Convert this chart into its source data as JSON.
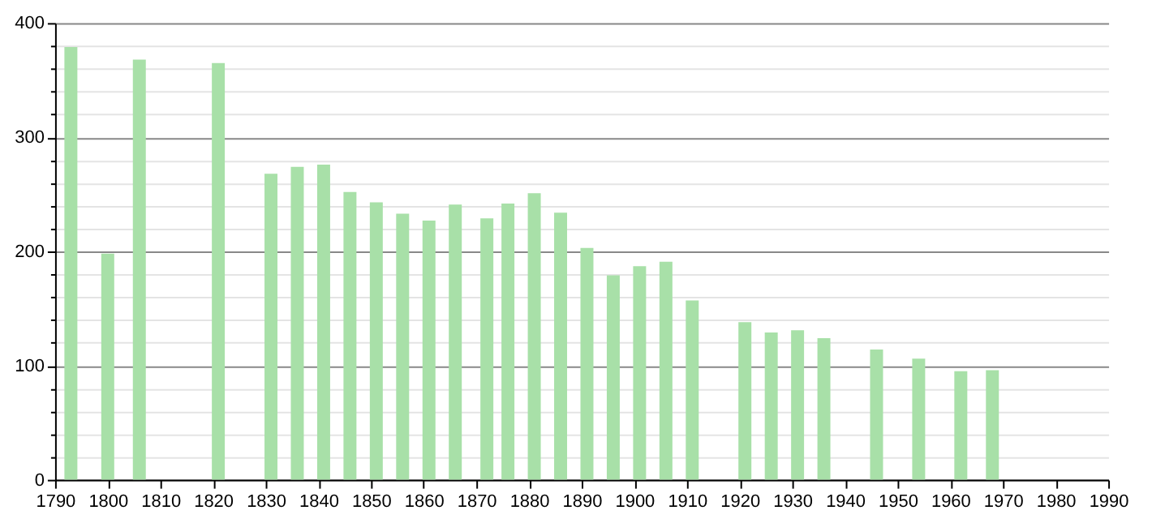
{
  "chart_data": {
    "type": "bar",
    "color": "#a8e0a8",
    "x": [
      1793,
      1800,
      1806,
      1821,
      1831,
      1836,
      1841,
      1846,
      1851,
      1856,
      1861,
      1866,
      1872,
      1876,
      1881,
      1886,
      1891,
      1896,
      1901,
      1906,
      1911,
      1921,
      1926,
      1931,
      1936,
      1946,
      1954,
      1962,
      1968
    ],
    "values": [
      379,
      198,
      368,
      365,
      268,
      274,
      276,
      252,
      243,
      233,
      227,
      241,
      229,
      242,
      251,
      234,
      203,
      179,
      187,
      191,
      157,
      138,
      129,
      131,
      124,
      114,
      106,
      95,
      96
    ],
    "xlim": [
      1790,
      1990
    ],
    "xticks": [
      1790,
      1800,
      1810,
      1820,
      1830,
      1840,
      1850,
      1860,
      1870,
      1880,
      1890,
      1900,
      1910,
      1920,
      1930,
      1940,
      1950,
      1960,
      1970,
      1980,
      1990
    ],
    "ylim": [
      0,
      400
    ],
    "yticks": [
      0,
      {
        "value": 20,
        "label": null
      },
      {
        "value": 40,
        "label": null
      },
      {
        "value": 60,
        "label": null
      },
      {
        "value": 80,
        "label": null
      },
      100,
      {
        "value": 120,
        "label": null
      },
      {
        "value": 140,
        "label": null
      },
      {
        "value": 160,
        "label": null
      },
      {
        "value": 180,
        "label": null
      },
      200,
      {
        "value": 220,
        "label": null
      },
      {
        "value": 240,
        "label": null
      },
      {
        "value": 260,
        "label": null
      },
      {
        "value": 280,
        "label": null
      },
      300,
      {
        "value": 320,
        "label": null
      },
      {
        "value": 340,
        "label": null
      },
      {
        "value": 360,
        "label": null
      },
      {
        "value": 380,
        "label": null
      },
      400
    ],
    "grid": "y"
  }
}
